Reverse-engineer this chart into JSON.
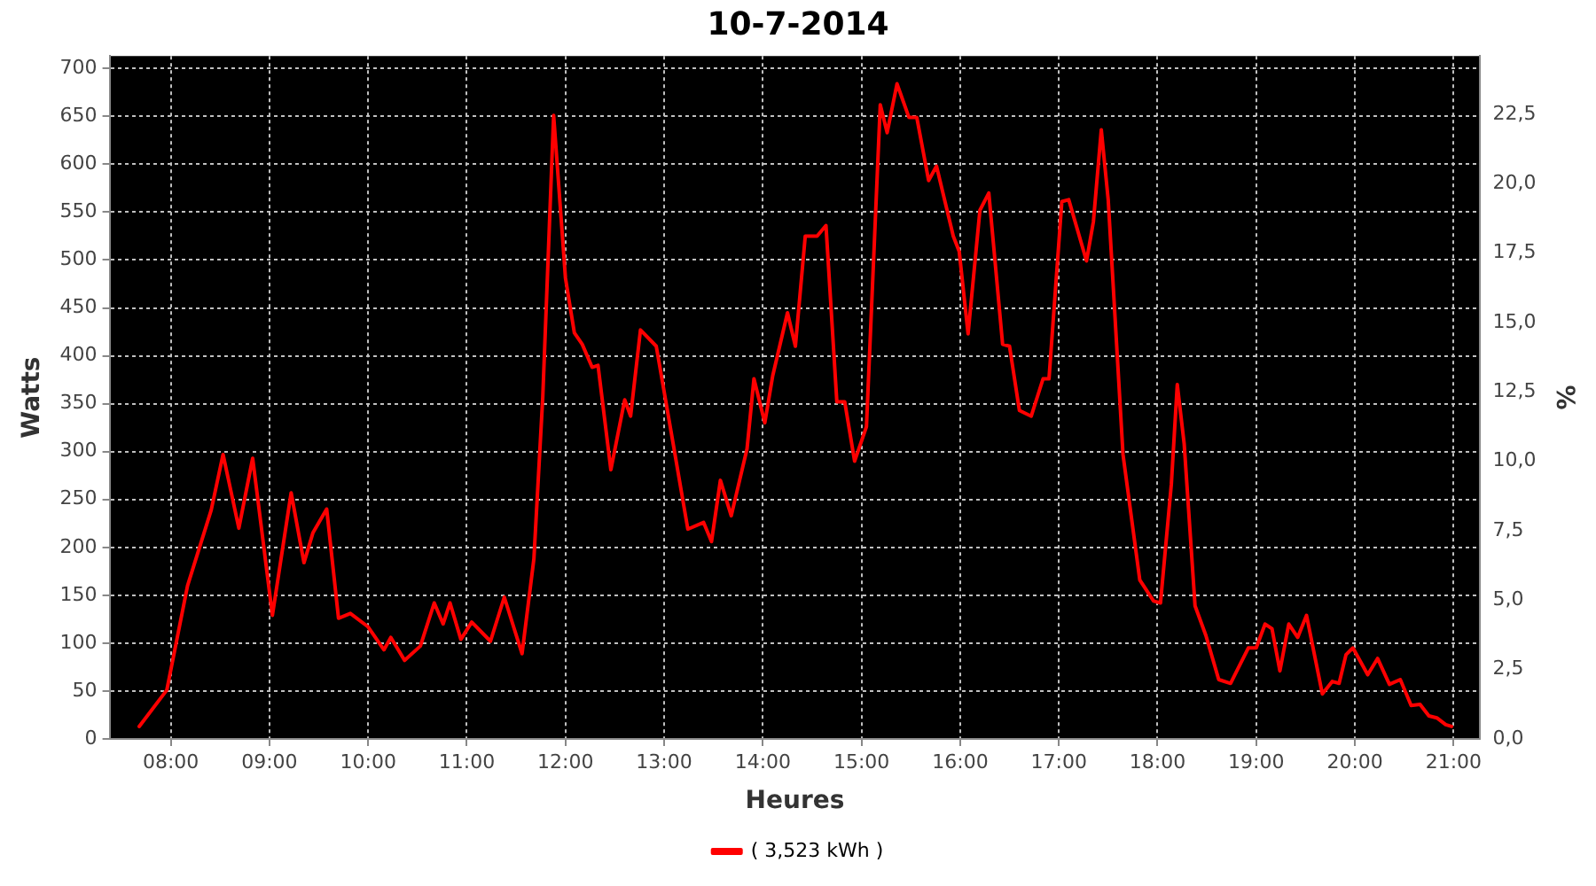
{
  "chart_data": {
    "type": "line",
    "title": "10-7-2014",
    "xlabel": "Heures",
    "ylabel": "Watts",
    "y2label": "%",
    "xlim": [
      7.38,
      21.27
    ],
    "xticks": [
      {
        "value": 8,
        "label": "08:00"
      },
      {
        "value": 9,
        "label": "09:00"
      },
      {
        "value": 10,
        "label": "10:00"
      },
      {
        "value": 11,
        "label": "11:00"
      },
      {
        "value": 12,
        "label": "12:00"
      },
      {
        "value": 13,
        "label": "13:00"
      },
      {
        "value": 14,
        "label": "14:00"
      },
      {
        "value": 15,
        "label": "15:00"
      },
      {
        "value": 16,
        "label": "16:00"
      },
      {
        "value": 17,
        "label": "17:00"
      },
      {
        "value": 18,
        "label": "18:00"
      },
      {
        "value": 19,
        "label": "19:00"
      },
      {
        "value": 20,
        "label": "20:00"
      },
      {
        "value": 21,
        "label": "21:00"
      }
    ],
    "ylim": [
      0,
      713
    ],
    "yticks": [
      0,
      50,
      100,
      150,
      200,
      250,
      300,
      350,
      400,
      450,
      500,
      550,
      600,
      650,
      700
    ],
    "y2lim": [
      0,
      24.6
    ],
    "y2ticks": [
      {
        "value": 0,
        "label": "0,0"
      },
      {
        "value": 2.5,
        "label": "2,5"
      },
      {
        "value": 5,
        "label": "5,0"
      },
      {
        "value": 7.5,
        "label": "7,5"
      },
      {
        "value": 10,
        "label": "10,0"
      },
      {
        "value": 12.5,
        "label": "12,5"
      },
      {
        "value": 15,
        "label": "15,0"
      },
      {
        "value": 17.5,
        "label": "17,5"
      },
      {
        "value": 20,
        "label": "20,0"
      },
      {
        "value": 22.5,
        "label": "22,5"
      }
    ],
    "grid": true,
    "legend": "bottom",
    "marker": "none",
    "line_style": "solid",
    "series": [
      {
        "name": "( 3,523 kWh )",
        "color": "#ff0000",
        "x": [
          7.68,
          7.96,
          8.17,
          8.41,
          8.53,
          8.69,
          8.83,
          9.03,
          9.22,
          9.35,
          9.44,
          9.58,
          9.7,
          9.82,
          10.0,
          10.16,
          10.23,
          10.37,
          10.53,
          10.67,
          10.76,
          10.83,
          10.94,
          11.05,
          11.24,
          11.38,
          11.56,
          11.68,
          11.77,
          11.88,
          12.0,
          12.09,
          12.17,
          12.27,
          12.33,
          12.46,
          12.6,
          12.66,
          12.76,
          12.92,
          13.1,
          13.24,
          13.4,
          13.48,
          13.57,
          13.68,
          13.84,
          13.91,
          14.02,
          14.1,
          14.25,
          14.33,
          14.43,
          14.55,
          14.64,
          14.75,
          14.83,
          14.93,
          15.05,
          15.19,
          15.26,
          15.36,
          15.48,
          15.56,
          15.68,
          15.76,
          15.93,
          15.99,
          16.08,
          16.2,
          16.29,
          16.43,
          16.5,
          16.6,
          16.72,
          16.84,
          16.9,
          17.03,
          17.1,
          17.28,
          17.35,
          17.43,
          17.5,
          17.65,
          17.82,
          17.96,
          18.03,
          18.14,
          18.2,
          18.27,
          18.38,
          18.49,
          18.62,
          18.74,
          18.92,
          19.0,
          19.09,
          19.16,
          19.24,
          19.33,
          19.42,
          19.51,
          19.67,
          19.77,
          19.84,
          19.91,
          19.98,
          20.13,
          20.23,
          20.35,
          20.46,
          20.57,
          20.66,
          20.75,
          20.83,
          20.92,
          20.98
        ],
        "values": [
          13,
          51,
          160,
          239,
          297,
          220,
          293,
          129,
          257,
          184,
          215,
          240,
          126,
          131,
          117,
          93,
          106,
          82,
          97,
          142,
          120,
          142,
          104,
          122,
          102,
          148,
          89,
          188,
          357,
          651,
          481,
          424,
          412,
          388,
          390,
          281,
          354,
          337,
          427,
          410,
          303,
          219,
          226,
          206,
          270,
          233,
          303,
          376,
          330,
          379,
          445,
          410,
          525,
          525,
          536,
          352,
          352,
          290,
          326,
          662,
          633,
          684,
          649,
          649,
          583,
          598,
          525,
          509,
          423,
          552,
          570,
          412,
          410,
          343,
          337,
          376,
          376,
          561,
          563,
          499,
          540,
          636,
          563,
          297,
          166,
          144,
          142,
          266,
          370,
          308,
          139,
          108,
          62,
          58,
          95,
          95,
          120,
          115,
          71,
          120,
          106,
          129,
          47,
          60,
          58,
          88,
          95,
          67,
          84,
          57,
          62,
          35,
          36,
          24,
          22,
          15,
          13
        ]
      }
    ]
  }
}
